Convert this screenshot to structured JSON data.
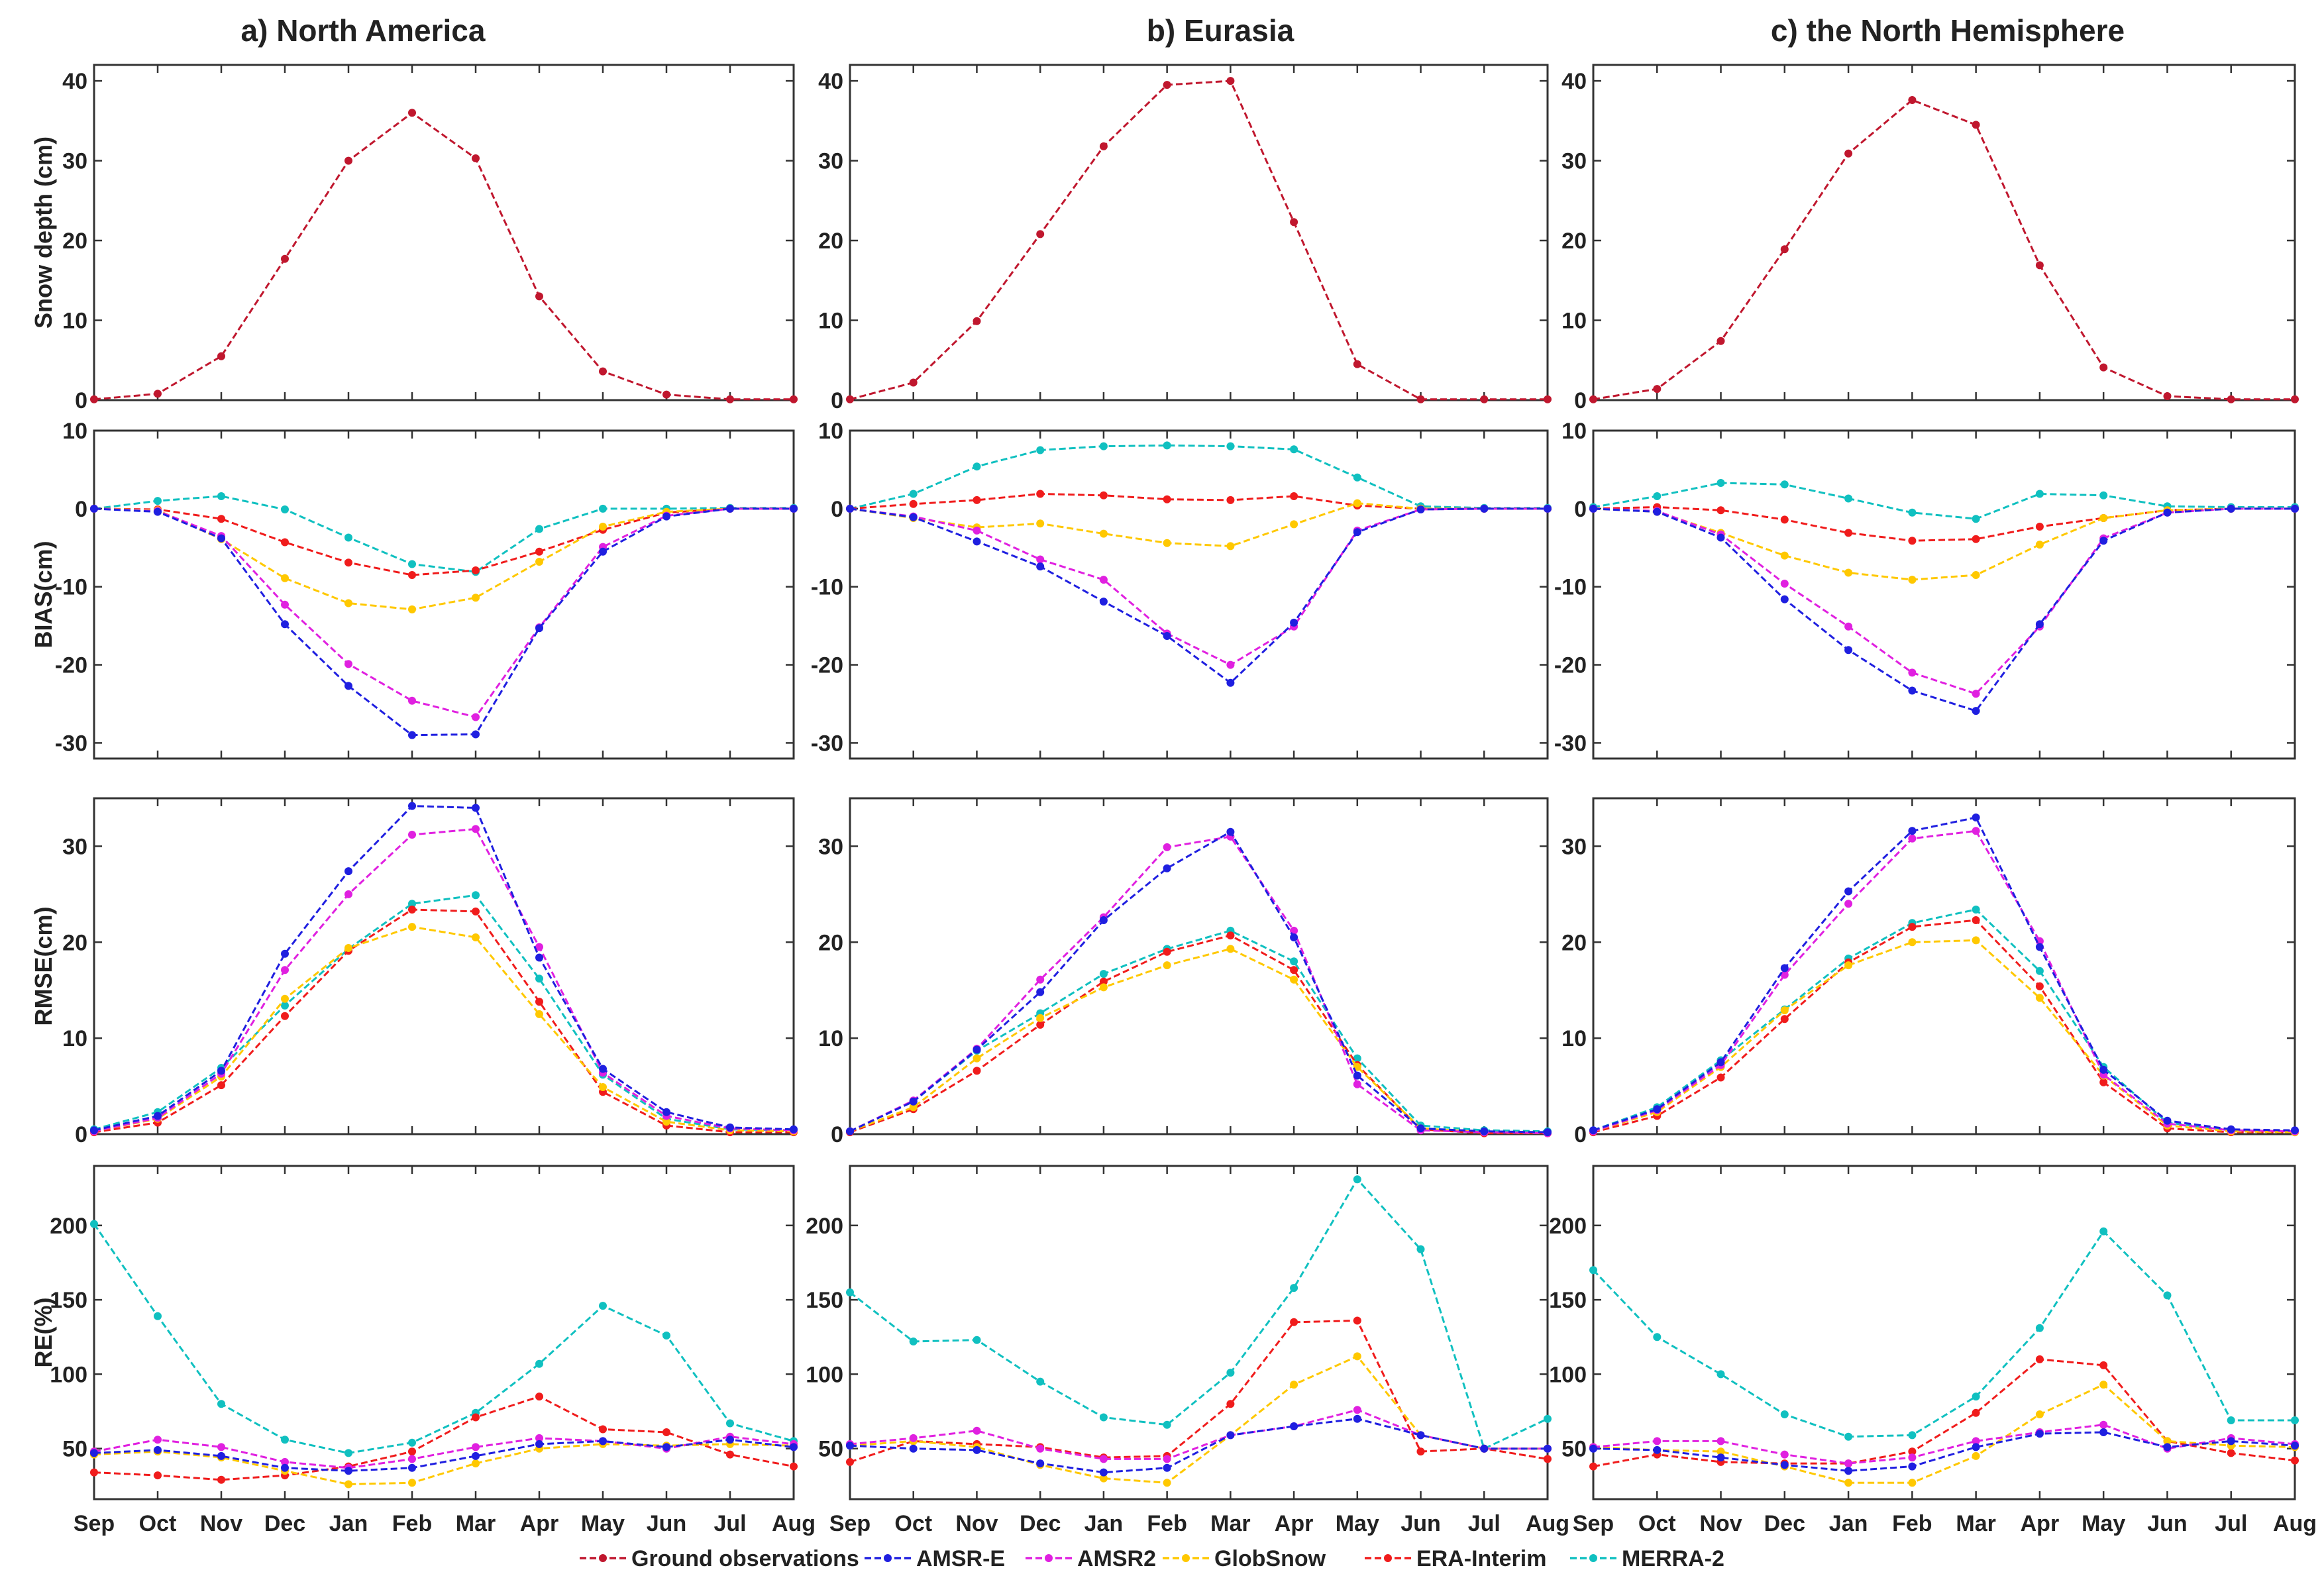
{
  "columns": [
    "a) North America",
    "b) Eurasia",
    "c) the North Hemisphere"
  ],
  "months": [
    "Sep",
    "Oct",
    "Nov",
    "Dec",
    "Jan",
    "Feb",
    "Mar",
    "Apr",
    "May",
    "Jun",
    "Jul",
    "Aug"
  ],
  "legend": [
    {
      "key": "ground",
      "label": "Ground observations",
      "color": "#C0172E"
    },
    {
      "key": "amsre",
      "label": "AMSR-E",
      "color": "#1F1FE0"
    },
    {
      "key": "amsr2",
      "label": "AMSR2",
      "color": "#E020E0"
    },
    {
      "key": "globsnow",
      "label": "GlobSnow",
      "color": "#FFC800"
    },
    {
      "key": "era",
      "label": "ERA-Interim",
      "color": "#F01C1C"
    },
    {
      "key": "merra",
      "label": "MERRA-2",
      "color": "#10C0C0"
    }
  ],
  "chart_data": [
    {
      "type": "line",
      "row": "depth",
      "ylabel": "Snow depth (cm)",
      "ylim": [
        0,
        42
      ],
      "yticks": [
        0,
        10,
        20,
        30,
        40
      ],
      "panels": [
        {
          "ground": [
            0.1,
            0.8,
            5.5,
            17.7,
            30.0,
            36.0,
            30.3,
            13.0,
            3.6,
            0.7,
            0.1,
            0.1
          ]
        },
        {
          "ground": [
            0.1,
            2.2,
            9.9,
            20.8,
            31.8,
            39.5,
            40.0,
            22.3,
            4.5,
            0.1,
            0.1,
            0.1
          ]
        },
        {
          "ground": [
            0.1,
            1.4,
            7.4,
            18.9,
            30.9,
            37.6,
            34.5,
            16.9,
            4.1,
            0.5,
            0.1,
            0.1
          ]
        }
      ]
    },
    {
      "type": "line",
      "row": "bias",
      "ylabel": "BIAS(cm)",
      "ylim": [
        -32,
        10
      ],
      "yticks": [
        -30,
        -20,
        -10,
        0,
        10
      ],
      "panels": [
        {
          "amsre": [
            0,
            -0.4,
            -3.8,
            -14.8,
            -22.7,
            -29.0,
            -28.9,
            -15.3,
            -5.5,
            -1.0,
            0,
            0
          ],
          "amsr2": [
            0,
            -0.3,
            -3.5,
            -12.3,
            -19.9,
            -24.6,
            -26.7,
            -15.2,
            -4.9,
            -0.9,
            0,
            0
          ],
          "globsnow": [
            0,
            -0.2,
            -3.9,
            -8.9,
            -12.1,
            -12.9,
            -11.4,
            -6.8,
            -2.3,
            -0.4,
            0,
            0
          ],
          "era": [
            0,
            -0.1,
            -1.3,
            -4.3,
            -6.9,
            -8.5,
            -7.9,
            -5.5,
            -2.7,
            -0.5,
            0,
            0
          ],
          "merra": [
            0,
            1.0,
            1.6,
            -0.1,
            -3.7,
            -7.1,
            -8.1,
            -2.6,
            0.0,
            0.0,
            0.1,
            0.1
          ]
        },
        {
          "amsre": [
            0,
            -1.1,
            -4.2,
            -7.4,
            -11.9,
            -16.3,
            -22.3,
            -14.6,
            -3.0,
            -0.1,
            0,
            0
          ],
          "amsr2": [
            0,
            -1.0,
            -2.8,
            -6.5,
            -9.1,
            -16.0,
            -20.0,
            -15.1,
            -2.8,
            -0.1,
            0,
            0
          ],
          "globsnow": [
            0,
            -1.2,
            -2.4,
            -1.9,
            -3.2,
            -4.4,
            -4.8,
            -2.0,
            0.7,
            0.0,
            0,
            0
          ],
          "era": [
            0,
            0.6,
            1.1,
            1.9,
            1.7,
            1.2,
            1.1,
            1.6,
            0.4,
            0.0,
            0,
            0
          ],
          "merra": [
            0,
            1.9,
            5.4,
            7.5,
            8.0,
            8.1,
            8.0,
            7.6,
            4.0,
            0.3,
            0.1,
            0.1
          ]
        },
        {
          "amsre": [
            0,
            -0.4,
            -3.7,
            -11.6,
            -18.1,
            -23.3,
            -25.9,
            -14.8,
            -4.1,
            -0.5,
            0,
            0
          ],
          "amsr2": [
            0,
            -0.3,
            -3.3,
            -9.6,
            -15.1,
            -21.0,
            -23.7,
            -15.1,
            -3.8,
            -0.5,
            0,
            0
          ],
          "globsnow": [
            0,
            -0.4,
            -3.1,
            -6.0,
            -8.2,
            -9.1,
            -8.5,
            -4.6,
            -1.2,
            -0.2,
            0,
            0
          ],
          "era": [
            0,
            0.2,
            -0.2,
            -1.4,
            -3.1,
            -4.1,
            -3.9,
            -2.3,
            -1.2,
            -0.2,
            0,
            0
          ],
          "merra": [
            0.2,
            1.6,
            3.3,
            3.1,
            1.3,
            -0.5,
            -1.3,
            1.9,
            1.7,
            0.3,
            0.2,
            0.2
          ]
        }
      ]
    },
    {
      "type": "line",
      "row": "rmse",
      "ylabel": "RMSE(cm)",
      "ylim": [
        0,
        35
      ],
      "yticks": [
        0,
        10,
        20,
        30
      ],
      "panels": [
        {
          "amsre": [
            0.4,
            1.9,
            6.6,
            18.8,
            27.4,
            34.2,
            34.0,
            18.4,
            6.8,
            2.3,
            0.7,
            0.5
          ],
          "amsr2": [
            0.3,
            1.7,
            6.3,
            17.1,
            25.0,
            31.2,
            31.8,
            19.5,
            6.4,
            1.9,
            0.6,
            0.4
          ],
          "globsnow": [
            0.3,
            1.6,
            6.0,
            14.1,
            19.4,
            21.6,
            20.5,
            12.5,
            4.9,
            1.3,
            0.4,
            0.3
          ],
          "era": [
            0.2,
            1.2,
            5.1,
            12.3,
            19.1,
            23.4,
            23.2,
            13.8,
            4.4,
            0.9,
            0.2,
            0.2
          ],
          "merra": [
            0.5,
            2.3,
            6.9,
            13.4,
            19.3,
            24.0,
            24.9,
            16.2,
            6.2,
            1.6,
            0.5,
            0.4
          ]
        },
        {
          "amsre": [
            0.3,
            3.4,
            8.8,
            14.8,
            22.3,
            27.7,
            31.5,
            20.5,
            6.1,
            0.6,
            0.3,
            0.2
          ],
          "amsr2": [
            0.3,
            3.5,
            8.9,
            16.1,
            22.6,
            29.9,
            31.0,
            21.2,
            5.2,
            0.4,
            0.2,
            0.1
          ],
          "globsnow": [
            0.3,
            2.8,
            7.9,
            12.1,
            15.3,
            17.6,
            19.3,
            16.1,
            7.0,
            0.6,
            0.2,
            0.1
          ],
          "era": [
            0.2,
            2.6,
            6.6,
            11.4,
            15.9,
            19.0,
            20.7,
            17.1,
            7.2,
            0.5,
            0.1,
            0.1
          ],
          "merra": [
            0.3,
            3.4,
            8.7,
            12.6,
            16.7,
            19.3,
            21.2,
            18.0,
            7.9,
            0.9,
            0.4,
            0.3
          ]
        },
        {
          "amsre": [
            0.4,
            2.6,
            7.5,
            17.3,
            25.3,
            31.6,
            33.0,
            19.5,
            6.7,
            1.4,
            0.5,
            0.4
          ],
          "amsr2": [
            0.3,
            2.5,
            7.2,
            16.6,
            24.0,
            30.8,
            31.6,
            20.1,
            6.2,
            1.1,
            0.4,
            0.3
          ],
          "globsnow": [
            0.3,
            2.3,
            7.0,
            12.9,
            17.6,
            20.0,
            20.2,
            14.2,
            6.1,
            0.9,
            0.3,
            0.2
          ],
          "era": [
            0.2,
            1.9,
            5.9,
            12.0,
            17.9,
            21.6,
            22.3,
            15.4,
            5.4,
            0.6,
            0.2,
            0.2
          ],
          "merra": [
            0.4,
            2.8,
            7.7,
            13.0,
            18.3,
            22.0,
            23.4,
            17.0,
            7.0,
            1.2,
            0.4,
            0.3
          ]
        }
      ]
    },
    {
      "type": "line",
      "row": "re",
      "ylabel": "RE(%)",
      "ylim": [
        16,
        240
      ],
      "yticks": [
        50,
        100,
        150,
        200
      ],
      "panels": [
        {
          "amsre": [
            47,
            49,
            45,
            37,
            35,
            37,
            45,
            53,
            55,
            51,
            56,
            51
          ],
          "amsr2": [
            48,
            56,
            51,
            41,
            37,
            43,
            51,
            57,
            55,
            50,
            58,
            53
          ],
          "globsnow": [
            46,
            48,
            44,
            35,
            26,
            27,
            40,
            50,
            53,
            52,
            53,
            52
          ],
          "era": [
            34,
            32,
            29,
            32,
            38,
            48,
            71,
            85,
            63,
            61,
            46,
            38
          ],
          "merra": [
            201,
            139,
            80,
            56,
            47,
            54,
            74,
            107,
            146,
            126,
            67,
            55
          ]
        },
        {
          "amsre": [
            52,
            50,
            49,
            40,
            34,
            37,
            59,
            65,
            70,
            59,
            50,
            50
          ],
          "amsr2": [
            53,
            57,
            62,
            50,
            43,
            43,
            59,
            65,
            76,
            59,
            50,
            50
          ],
          "globsnow": [
            52,
            55,
            51,
            39,
            30,
            27,
            59,
            93,
            112,
            59,
            50,
            50
          ],
          "era": [
            41,
            55,
            53,
            51,
            44,
            45,
            80,
            135,
            136,
            48,
            50,
            43
          ],
          "merra": [
            155,
            122,
            123,
            95,
            71,
            66,
            101,
            158,
            231,
            184,
            50,
            70
          ]
        },
        {
          "amsre": [
            50,
            49,
            44,
            39,
            35,
            38,
            51,
            60,
            61,
            51,
            55,
            52
          ],
          "amsr2": [
            51,
            55,
            55,
            46,
            40,
            44,
            55,
            61,
            66,
            50,
            57,
            53
          ],
          "globsnow": [
            51,
            49,
            48,
            38,
            27,
            27,
            45,
            73,
            93,
            55,
            52,
            51
          ],
          "era": [
            38,
            46,
            41,
            40,
            40,
            48,
            74,
            110,
            106,
            55,
            47,
            42
          ],
          "merra": [
            170,
            125,
            100,
            73,
            58,
            59,
            85,
            131,
            196,
            153,
            69,
            69
          ]
        }
      ]
    }
  ]
}
